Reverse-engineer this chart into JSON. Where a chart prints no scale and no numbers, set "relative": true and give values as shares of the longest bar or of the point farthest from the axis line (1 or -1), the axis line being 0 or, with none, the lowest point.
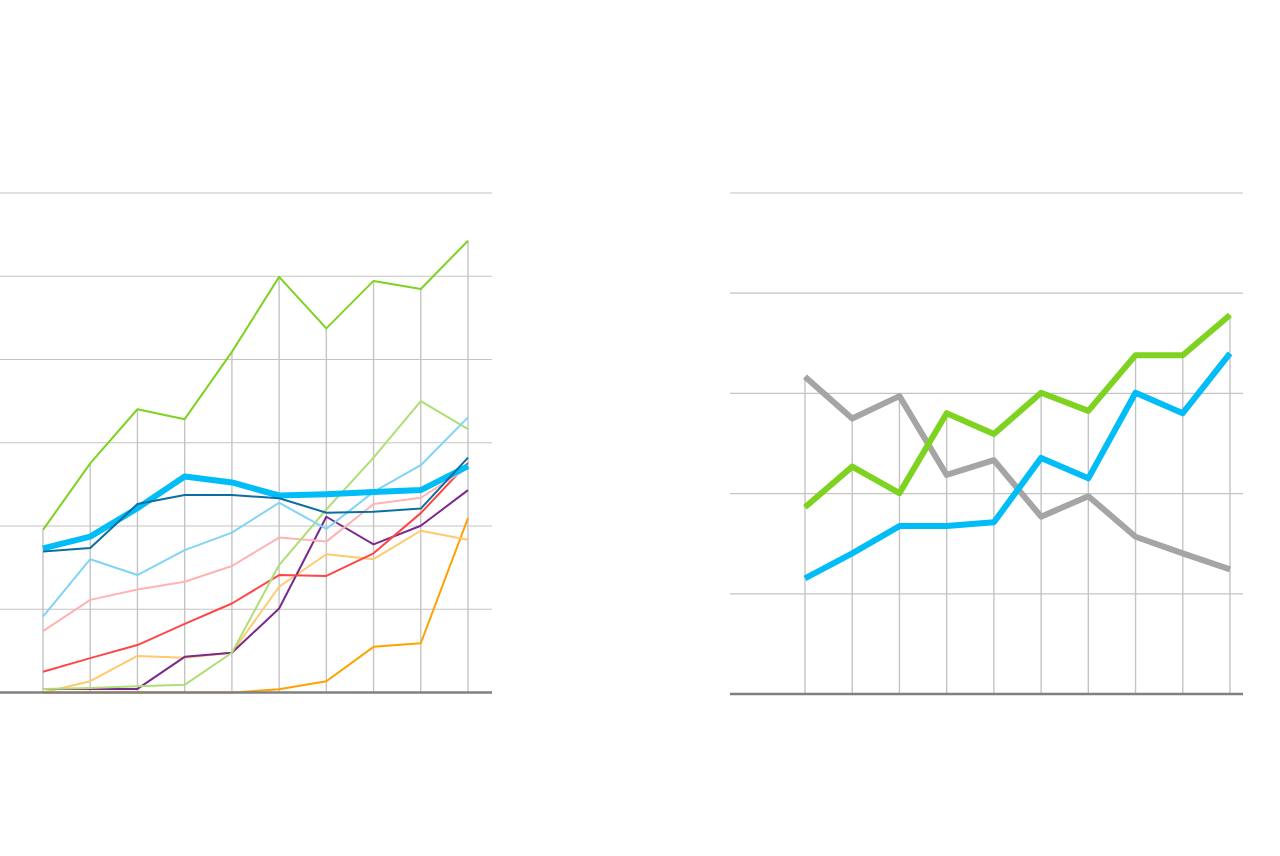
{
  "chart_data": [
    {
      "type": "line",
      "relative": true,
      "grid": true,
      "categories": [
        null,
        null,
        null,
        null,
        null,
        null,
        null,
        null,
        null,
        null
      ],
      "series": [
        {
          "color": "#ffa100",
          "values": [
            0,
            0,
            0,
            0,
            0,
            0.007,
            0.025,
            0.101,
            0.109,
            0.386
          ]
        },
        {
          "color": "#ffc96e",
          "values": [
            0,
            0.025,
            0.081,
            0.077,
            0.088,
            0.234,
            0.306,
            0.295,
            0.358,
            0.338
          ]
        },
        {
          "color": "#7a2a8c",
          "values": [
            0.008,
            0.008,
            0.008,
            0.079,
            0.088,
            0.186,
            0.389,
            0.328,
            0.369,
            0.448
          ]
        },
        {
          "color": "#ff4545",
          "values": [
            0.046,
            0.076,
            0.105,
            0.152,
            0.197,
            0.26,
            0.258,
            0.308,
            0.397,
            0.508
          ]
        },
        {
          "color": "#ffb3b3",
          "values": [
            0.136,
            0.205,
            0.228,
            0.245,
            0.28,
            0.343,
            0.334,
            0.417,
            0.431,
            0.497
          ]
        },
        {
          "color": "#addf75",
          "values": [
            0.008,
            0.01,
            0.014,
            0.017,
            0.088,
            0.282,
            0.405,
            0.52,
            0.645,
            0.583
          ]
        },
        {
          "color": "#80d4f5",
          "values": [
            0.168,
            0.295,
            0.26,
            0.315,
            0.354,
            0.42,
            0.362,
            0.444,
            0.503,
            0.609
          ]
        },
        {
          "color": "#7ed321",
          "values": [
            0.36,
            0.507,
            0.627,
            0.605,
            0.754,
            0.92,
            0.806,
            0.911,
            0.893,
            1
          ]
        },
        {
          "color": "#00bdf7",
          "values": [
            0.319,
            0.345,
            0.408,
            0.478,
            0.465,
            0.436,
            0.439,
            0.444,
            0.448,
            0.501
          ]
        },
        {
          "color": "#0a6ea3",
          "values": [
            0.312,
            0.32,
            0.417,
            0.437,
            0.437,
            0.43,
            0.398,
            0.4,
            0.407,
            0.52
          ]
        }
      ]
    },
    {
      "type": "line",
      "relative": true,
      "grid": true,
      "categories": [
        null,
        null,
        null,
        null,
        null,
        null,
        null,
        null,
        null,
        null
      ],
      "series": [
        {
          "color": "#a5a5a5",
          "values": [
            0.837,
            0.727,
            0.786,
            0.578,
            0.617,
            0.468,
            0.522,
            0.415,
            0.371,
            0.329
          ]
        },
        {
          "color": "#7ed321",
          "values": [
            0.493,
            0.6,
            0.53,
            0.741,
            0.686,
            0.795,
            0.747,
            0.894,
            0.894,
            1
          ]
        },
        {
          "color": "#00bdf7",
          "values": [
            0.305,
            0.371,
            0.443,
            0.443,
            0.453,
            0.623,
            0.569,
            0.795,
            0.741,
            0.899
          ]
        }
      ]
    }
  ]
}
